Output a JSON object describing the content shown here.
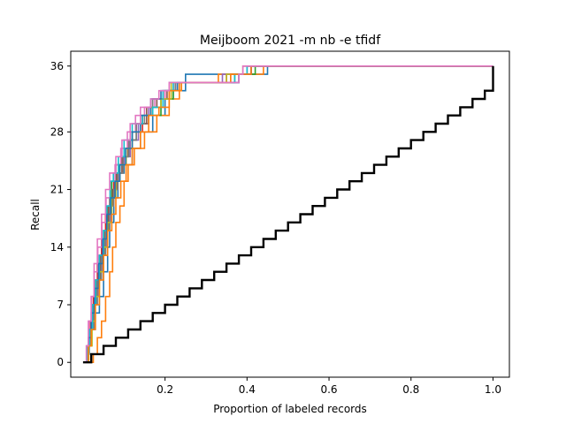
{
  "chart_data": {
    "type": "line",
    "title": "Meijboom 2021 -m nb -e tfidf",
    "xlabel": "Proportion of labeled records",
    "ylabel": "Recall",
    "xlim": [
      -0.03,
      1.04
    ],
    "ylim": [
      -1.8,
      37.8
    ],
    "xticks": [
      0.2,
      0.4,
      0.6,
      0.8,
      1.0
    ],
    "xtick_labels": [
      "0.2",
      "0.4",
      "0.6",
      "0.8",
      "1.0"
    ],
    "yticks": [
      0,
      7,
      14,
      21,
      28,
      36
    ],
    "ytick_labels": [
      "0",
      "7",
      "14",
      "21",
      "28",
      "36"
    ],
    "grid": false,
    "legend": "none",
    "total_relevant": 36,
    "total_records": 1.0,
    "series": [
      {
        "color": "#1f77b4",
        "points": [
          [
            0.005,
            0
          ],
          [
            0.01,
            1
          ],
          [
            0.015,
            2
          ],
          [
            0.02,
            4
          ],
          [
            0.03,
            6
          ],
          [
            0.04,
            8
          ],
          [
            0.05,
            11
          ],
          [
            0.06,
            14
          ],
          [
            0.065,
            17
          ],
          [
            0.075,
            20
          ],
          [
            0.085,
            23
          ],
          [
            0.1,
            24
          ],
          [
            0.12,
            26
          ],
          [
            0.14,
            28
          ],
          [
            0.17,
            30
          ],
          [
            0.2,
            32
          ],
          [
            0.22,
            33
          ],
          [
            0.25,
            35
          ],
          [
            0.4,
            35
          ],
          [
            0.45,
            36
          ],
          [
            1.0,
            36
          ]
        ]
      },
      {
        "color": "#ff7f0e",
        "points": [
          [
            0.02,
            0
          ],
          [
            0.025,
            1
          ],
          [
            0.035,
            3
          ],
          [
            0.045,
            5
          ],
          [
            0.055,
            8
          ],
          [
            0.065,
            11
          ],
          [
            0.072,
            14
          ],
          [
            0.08,
            17
          ],
          [
            0.09,
            19
          ],
          [
            0.1,
            22
          ],
          [
            0.11,
            24
          ],
          [
            0.125,
            26
          ],
          [
            0.15,
            28
          ],
          [
            0.18,
            30
          ],
          [
            0.21,
            32
          ],
          [
            0.235,
            34
          ],
          [
            0.29,
            34
          ],
          [
            0.33,
            35
          ],
          [
            0.42,
            35
          ],
          [
            0.44,
            36
          ],
          [
            1.0,
            36
          ]
        ]
      },
      {
        "color": "#2ca02c",
        "points": [
          [
            0.006,
            0
          ],
          [
            0.01,
            2
          ],
          [
            0.015,
            4
          ],
          [
            0.022,
            7
          ],
          [
            0.03,
            10
          ],
          [
            0.04,
            13
          ],
          [
            0.05,
            16
          ],
          [
            0.06,
            19
          ],
          [
            0.07,
            22
          ],
          [
            0.08,
            24
          ],
          [
            0.095,
            25
          ],
          [
            0.11,
            27
          ],
          [
            0.13,
            29
          ],
          [
            0.16,
            30
          ],
          [
            0.19,
            32
          ],
          [
            0.22,
            33
          ],
          [
            0.24,
            34
          ],
          [
            0.37,
            35
          ],
          [
            0.42,
            36
          ],
          [
            1.0,
            36
          ]
        ]
      },
      {
        "color": "#d62728",
        "points": [
          [
            0.006,
            0
          ],
          [
            0.01,
            2
          ],
          [
            0.018,
            5
          ],
          [
            0.025,
            8
          ],
          [
            0.035,
            12
          ],
          [
            0.045,
            15
          ],
          [
            0.055,
            18
          ],
          [
            0.065,
            20
          ],
          [
            0.075,
            22
          ],
          [
            0.09,
            24
          ],
          [
            0.105,
            26
          ],
          [
            0.12,
            28
          ],
          [
            0.145,
            30
          ],
          [
            0.17,
            32
          ],
          [
            0.2,
            33
          ],
          [
            0.23,
            34
          ],
          [
            0.35,
            35
          ],
          [
            0.41,
            36
          ],
          [
            1.0,
            36
          ]
        ]
      },
      {
        "color": "#9467bd",
        "points": [
          [
            0.008,
            0
          ],
          [
            0.012,
            2
          ],
          [
            0.02,
            5
          ],
          [
            0.028,
            8
          ],
          [
            0.038,
            11
          ],
          [
            0.048,
            14
          ],
          [
            0.058,
            17
          ],
          [
            0.068,
            20
          ],
          [
            0.078,
            22
          ],
          [
            0.088,
            24
          ],
          [
            0.1,
            25
          ],
          [
            0.115,
            27
          ],
          [
            0.135,
            29
          ],
          [
            0.16,
            31
          ],
          [
            0.18,
            32
          ],
          [
            0.21,
            34
          ],
          [
            0.34,
            35
          ],
          [
            0.39,
            36
          ],
          [
            1.0,
            36
          ]
        ]
      },
      {
        "color": "#8c564b",
        "points": [
          [
            0.006,
            0
          ],
          [
            0.011,
            2
          ],
          [
            0.017,
            4
          ],
          [
            0.024,
            7
          ],
          [
            0.032,
            10
          ],
          [
            0.042,
            13
          ],
          [
            0.052,
            16
          ],
          [
            0.062,
            19
          ],
          [
            0.072,
            21
          ],
          [
            0.082,
            23
          ],
          [
            0.095,
            25
          ],
          [
            0.11,
            27
          ],
          [
            0.13,
            29
          ],
          [
            0.155,
            31
          ],
          [
            0.18,
            32
          ],
          [
            0.205,
            33
          ],
          [
            0.23,
            34
          ],
          [
            0.36,
            35
          ],
          [
            0.4,
            36
          ],
          [
            1.0,
            36
          ]
        ]
      },
      {
        "color": "#e377c2",
        "points": [
          [
            0.005,
            0
          ],
          [
            0.009,
            2
          ],
          [
            0.014,
            5
          ],
          [
            0.02,
            8
          ],
          [
            0.027,
            11
          ],
          [
            0.036,
            14
          ],
          [
            0.046,
            17
          ],
          [
            0.056,
            20
          ],
          [
            0.066,
            22
          ],
          [
            0.078,
            24
          ],
          [
            0.092,
            26
          ],
          [
            0.108,
            28
          ],
          [
            0.128,
            30
          ],
          [
            0.15,
            31
          ],
          [
            0.175,
            32
          ],
          [
            0.2,
            33
          ],
          [
            0.22,
            34
          ],
          [
            0.38,
            35
          ],
          [
            0.41,
            36
          ],
          [
            1.0,
            36
          ]
        ]
      },
      {
        "color": "#7f7f7f",
        "points": [
          [
            0.007,
            0
          ],
          [
            0.012,
            2
          ],
          [
            0.019,
            4
          ],
          [
            0.027,
            7
          ],
          [
            0.035,
            10
          ],
          [
            0.045,
            13
          ],
          [
            0.055,
            16
          ],
          [
            0.065,
            19
          ],
          [
            0.075,
            21
          ],
          [
            0.085,
            23
          ],
          [
            0.098,
            25
          ],
          [
            0.112,
            27
          ],
          [
            0.13,
            29
          ],
          [
            0.15,
            30
          ],
          [
            0.17,
            32
          ],
          [
            0.195,
            33
          ],
          [
            0.225,
            34
          ],
          [
            0.38,
            35
          ],
          [
            0.4,
            36
          ],
          [
            1.0,
            36
          ]
        ]
      },
      {
        "color": "#bcbd22",
        "points": [
          [
            0.009,
            0
          ],
          [
            0.014,
            2
          ],
          [
            0.022,
            5
          ],
          [
            0.03,
            8
          ],
          [
            0.04,
            11
          ],
          [
            0.05,
            14
          ],
          [
            0.06,
            17
          ],
          [
            0.07,
            20
          ],
          [
            0.08,
            22
          ],
          [
            0.09,
            24
          ],
          [
            0.105,
            26
          ],
          [
            0.12,
            28
          ],
          [
            0.14,
            30
          ],
          [
            0.165,
            31
          ],
          [
            0.19,
            32
          ],
          [
            0.215,
            34
          ],
          [
            0.35,
            35
          ],
          [
            0.39,
            36
          ],
          [
            1.0,
            36
          ]
        ]
      },
      {
        "color": "#17becf",
        "points": [
          [
            0.006,
            0
          ],
          [
            0.01,
            2
          ],
          [
            0.016,
            4
          ],
          [
            0.023,
            7
          ],
          [
            0.031,
            10
          ],
          [
            0.04,
            13
          ],
          [
            0.05,
            16
          ],
          [
            0.058,
            19
          ],
          [
            0.066,
            22
          ],
          [
            0.074,
            23
          ],
          [
            0.086,
            25
          ],
          [
            0.1,
            27
          ],
          [
            0.12,
            29
          ],
          [
            0.145,
            30
          ],
          [
            0.17,
            31
          ],
          [
            0.195,
            33
          ],
          [
            0.22,
            34
          ],
          [
            0.37,
            35
          ],
          [
            0.4,
            36
          ],
          [
            1.0,
            36
          ]
        ]
      },
      {
        "color": "#1f77b4",
        "points": [
          [
            0.007,
            0
          ],
          [
            0.013,
            3
          ],
          [
            0.02,
            6
          ],
          [
            0.028,
            9
          ],
          [
            0.038,
            12
          ],
          [
            0.048,
            15
          ],
          [
            0.058,
            18
          ],
          [
            0.068,
            20
          ],
          [
            0.078,
            22
          ],
          [
            0.09,
            24
          ],
          [
            0.104,
            26
          ],
          [
            0.12,
            28
          ],
          [
            0.14,
            30
          ],
          [
            0.165,
            32
          ],
          [
            0.19,
            33
          ],
          [
            0.23,
            34
          ],
          [
            0.38,
            35
          ],
          [
            0.41,
            36
          ],
          [
            1.0,
            36
          ]
        ]
      },
      {
        "color": "#ff7f0e",
        "points": [
          [
            0.008,
            0
          ],
          [
            0.013,
            2
          ],
          [
            0.02,
            4
          ],
          [
            0.03,
            7
          ],
          [
            0.04,
            10
          ],
          [
            0.05,
            13
          ],
          [
            0.06,
            16
          ],
          [
            0.07,
            18
          ],
          [
            0.08,
            20
          ],
          [
            0.092,
            22
          ],
          [
            0.105,
            24
          ],
          [
            0.12,
            26
          ],
          [
            0.14,
            28
          ],
          [
            0.16,
            30
          ],
          [
            0.185,
            31
          ],
          [
            0.21,
            33
          ],
          [
            0.24,
            34
          ],
          [
            0.36,
            35
          ],
          [
            0.41,
            36
          ],
          [
            1.0,
            36
          ]
        ]
      },
      {
        "color": "#e377c2",
        "points": [
          [
            0.004,
            0
          ],
          [
            0.008,
            2
          ],
          [
            0.013,
            5
          ],
          [
            0.02,
            8
          ],
          [
            0.027,
            12
          ],
          [
            0.035,
            15
          ],
          [
            0.045,
            18
          ],
          [
            0.055,
            21
          ],
          [
            0.065,
            23
          ],
          [
            0.08,
            25
          ],
          [
            0.095,
            27
          ],
          [
            0.115,
            29
          ],
          [
            0.14,
            31
          ],
          [
            0.165,
            32
          ],
          [
            0.185,
            33
          ],
          [
            0.21,
            34
          ],
          [
            0.38,
            35
          ],
          [
            0.39,
            36
          ],
          [
            1.0,
            36
          ]
        ]
      },
      {
        "color": "#000000",
        "width": 2.4,
        "points": [
          [
            0.0,
            0
          ],
          [
            0.02,
            0
          ],
          [
            0.02,
            1
          ],
          [
            0.05,
            2
          ],
          [
            0.08,
            3
          ],
          [
            0.11,
            4
          ],
          [
            0.14,
            5
          ],
          [
            0.17,
            6
          ],
          [
            0.2,
            7
          ],
          [
            0.23,
            8
          ],
          [
            0.26,
            9
          ],
          [
            0.29,
            10
          ],
          [
            0.32,
            11
          ],
          [
            0.35,
            12
          ],
          [
            0.38,
            13
          ],
          [
            0.41,
            14
          ],
          [
            0.44,
            15
          ],
          [
            0.47,
            16
          ],
          [
            0.5,
            17
          ],
          [
            0.53,
            18
          ],
          [
            0.56,
            19
          ],
          [
            0.59,
            20
          ],
          [
            0.62,
            21
          ],
          [
            0.65,
            22
          ],
          [
            0.68,
            23
          ],
          [
            0.71,
            24
          ],
          [
            0.74,
            25
          ],
          [
            0.77,
            26
          ],
          [
            0.8,
            27
          ],
          [
            0.83,
            28
          ],
          [
            0.86,
            29
          ],
          [
            0.89,
            30
          ],
          [
            0.92,
            31
          ],
          [
            0.95,
            32
          ],
          [
            0.98,
            33
          ],
          [
            1.0,
            34
          ],
          [
            1.0,
            36
          ]
        ]
      }
    ]
  }
}
